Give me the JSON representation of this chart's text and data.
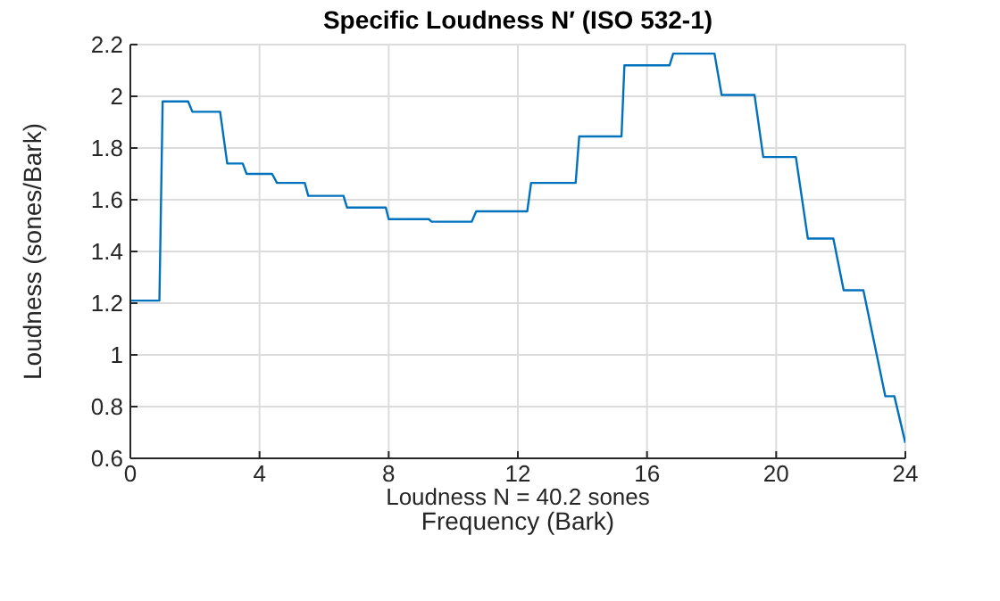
{
  "chart_data": {
    "type": "line",
    "title": "Specific Loudness N′  (ISO 532-1)",
    "xlabel": "Frequency (Bark)",
    "ylabel": "Loudness (sones/Bark)",
    "annotations": [
      "Loudness N = 40.2 sones"
    ],
    "x": [
      0,
      0.9,
      1.0,
      1.79,
      1.92,
      2.78,
      3.0,
      3.48,
      3.6,
      4.39,
      4.54,
      5.4,
      5.51,
      6.6,
      6.71,
      7.91,
      8.0,
      9.24,
      9.33,
      10.57,
      10.71,
      12.29,
      12.41,
      13.79,
      13.9,
      15.21,
      15.3,
      16.7,
      16.81,
      18.09,
      18.31,
      19.33,
      19.6,
      20.61,
      20.98,
      21.77,
      22.09,
      22.7,
      23.38,
      23.66,
      24
    ],
    "series": [
      {
        "color": "#0072bd",
        "values": [
          1.21,
          1.21,
          1.98,
          1.98,
          1.94,
          1.94,
          1.74,
          1.74,
          1.7,
          1.7,
          1.665,
          1.665,
          1.615,
          1.615,
          1.57,
          1.57,
          1.525,
          1.525,
          1.515,
          1.515,
          1.555,
          1.555,
          1.665,
          1.665,
          1.845,
          1.845,
          2.12,
          2.12,
          2.165,
          2.165,
          2.005,
          2.005,
          1.765,
          1.765,
          1.45,
          1.45,
          1.25,
          1.25,
          0.84,
          0.84,
          0.66
        ]
      }
    ],
    "xlim": [
      0,
      24
    ],
    "xticks": [
      0,
      4,
      8,
      12,
      16,
      20,
      24
    ],
    "ylim": [
      0.6,
      2.2
    ],
    "yticks": [
      0.6,
      0.8,
      1,
      1.2,
      1.4,
      1.6,
      1.8,
      2,
      2.2
    ],
    "grid": true,
    "marker": "none",
    "line_style": "solid"
  }
}
